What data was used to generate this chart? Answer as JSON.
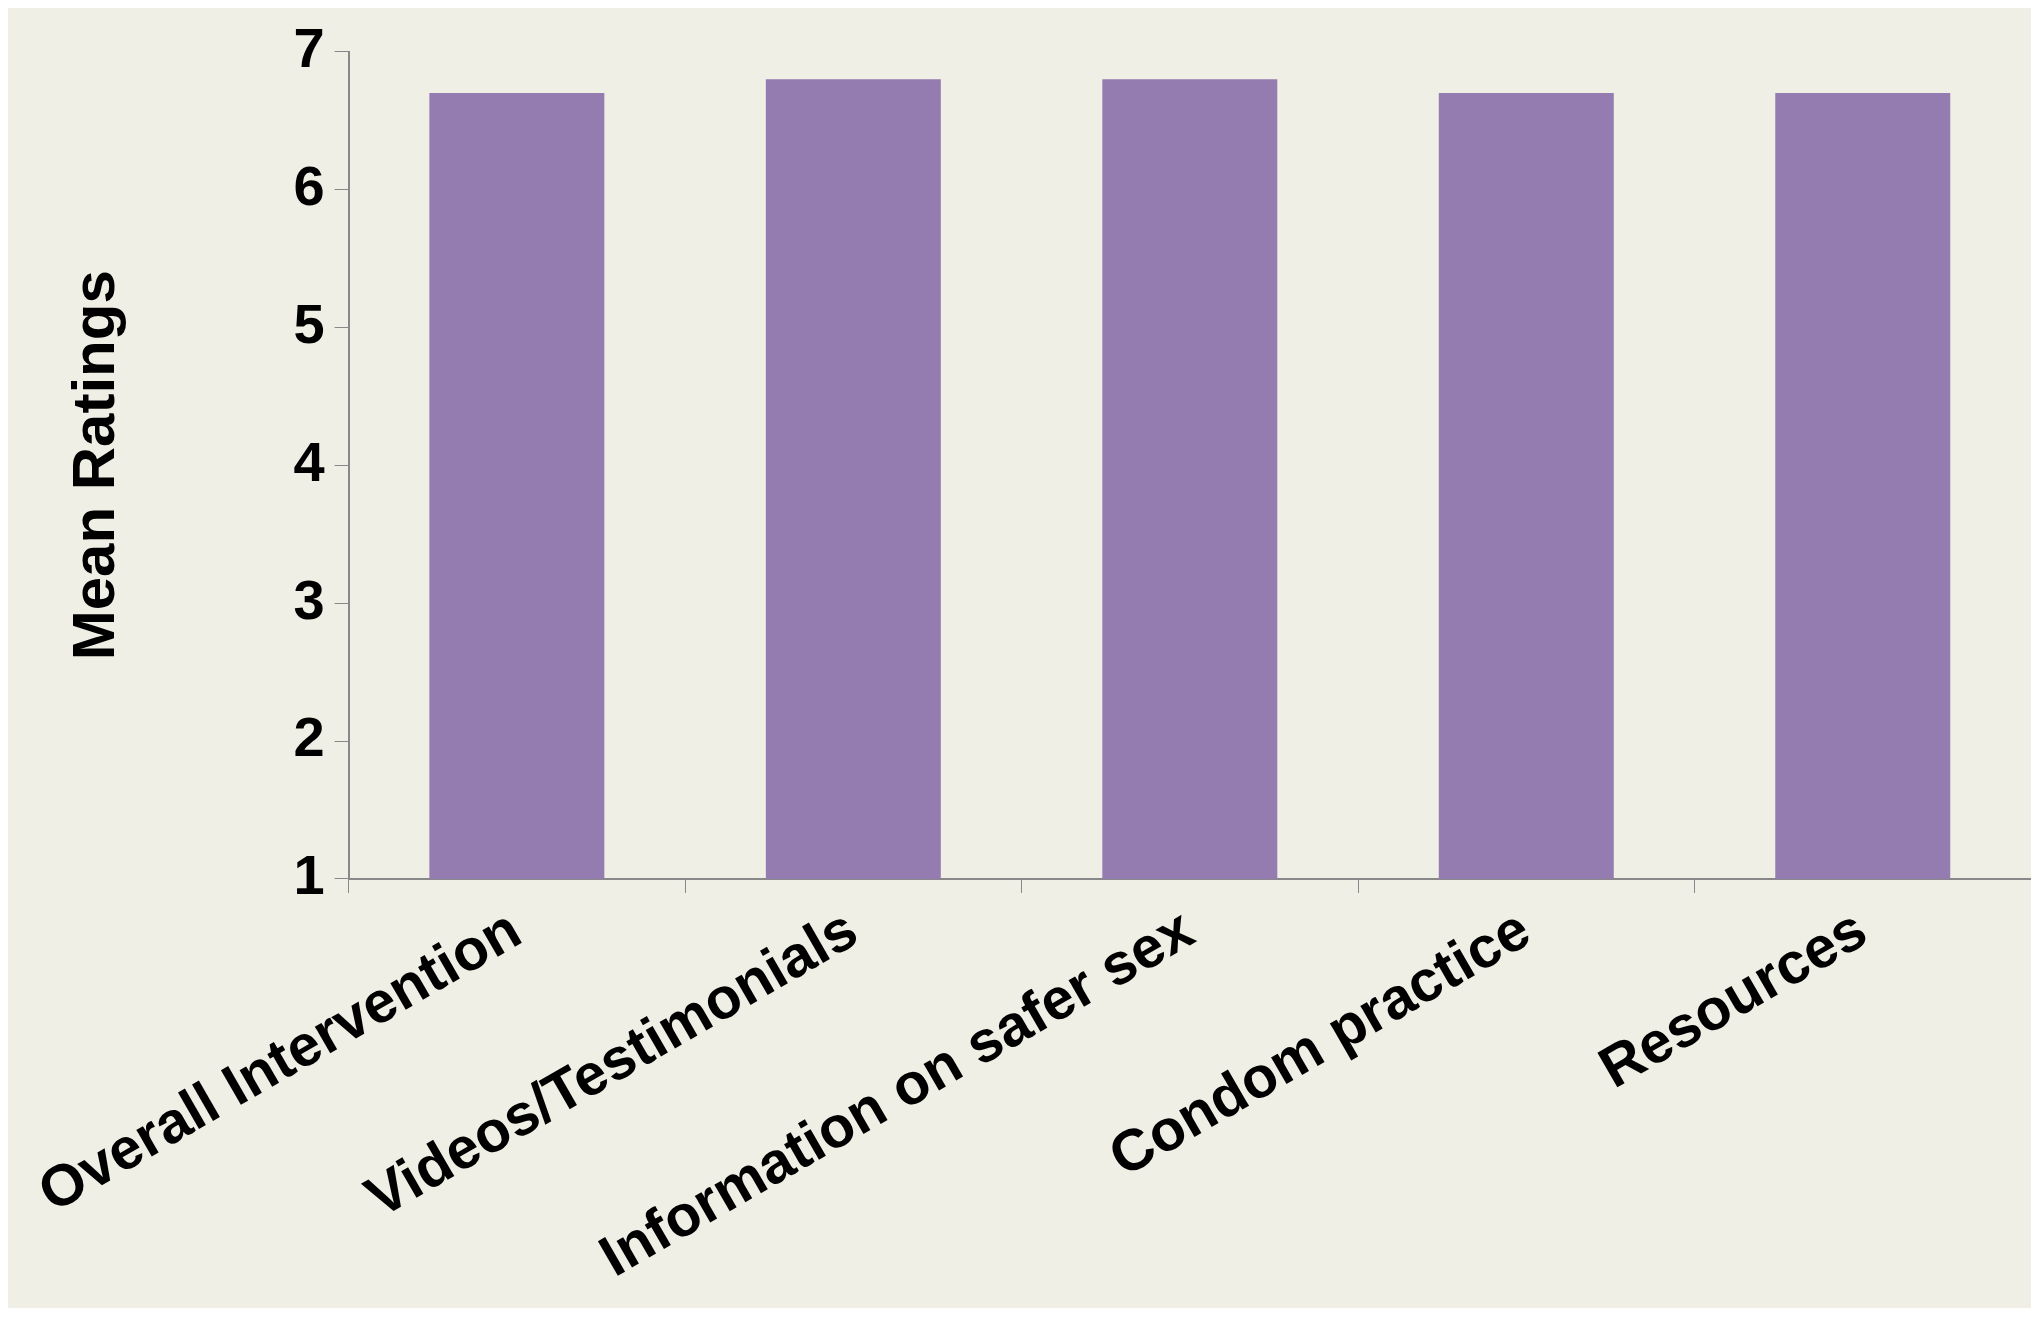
{
  "chart_data": {
    "type": "bar",
    "ylabel": "Mean Ratings",
    "categories": [
      "Overall Intervention",
      "Videos/Testimonials",
      "Information on safer sex",
      "Condom practice",
      "Resources"
    ],
    "values": [
      6.7,
      6.8,
      6.8,
      6.7,
      6.7
    ],
    "color": "#947bb0",
    "ylim": [
      1,
      7
    ],
    "yticks": [
      1,
      2,
      3,
      4,
      5,
      6,
      7
    ],
    "grid": false,
    "legend": false
  }
}
